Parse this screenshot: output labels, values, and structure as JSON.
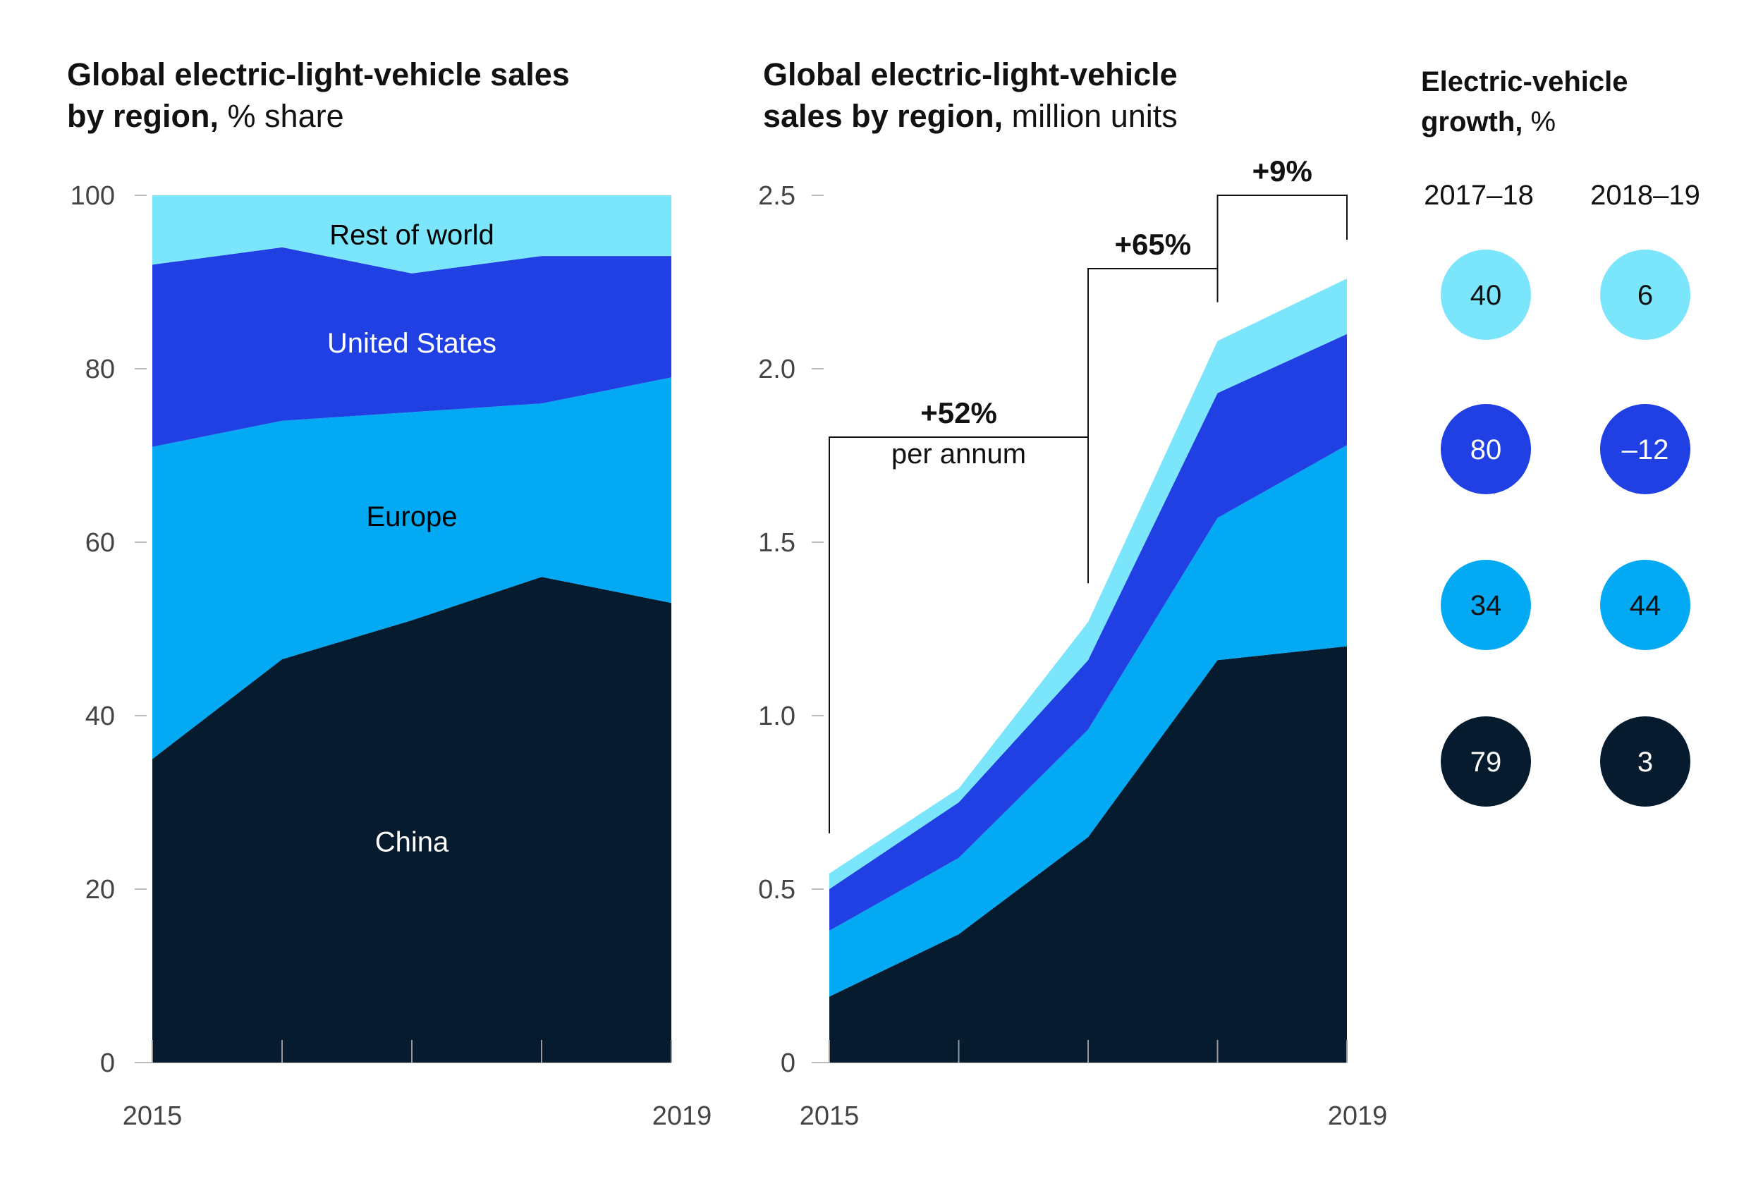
{
  "chart_data": [
    {
      "type": "area",
      "stacked": true,
      "title_bold": "Global electric-light-vehicle sales by region,",
      "title_unit": "% share",
      "title_line1": "Global electric-light-vehicle sales",
      "title_line2_bold": "by region,",
      "x": [
        2015,
        2016,
        2017,
        2018,
        2019
      ],
      "x_tick_labels": [
        "2015",
        "2019"
      ],
      "ylim": [
        0,
        100
      ],
      "y_ticks": [
        "0",
        "20",
        "40",
        "60",
        "80",
        "100"
      ],
      "series": [
        {
          "name": "China",
          "values": [
            35,
            46.5,
            51,
            56,
            53
          ],
          "color": "#061c2e",
          "label_color": "#ffffff"
        },
        {
          "name": "Europe",
          "values": [
            36,
            27.5,
            24,
            20,
            26
          ],
          "color": "#03a9f2",
          "label_color": "#000000"
        },
        {
          "name": "United States",
          "values": [
            21,
            20,
            16,
            17,
            14
          ],
          "color": "#2040e3",
          "label_color": "#ffffff"
        },
        {
          "name": "Rest of world",
          "values": [
            8,
            6,
            9,
            7,
            7
          ],
          "color": "#7be5fb",
          "label_color": "#000000"
        }
      ]
    },
    {
      "type": "area",
      "stacked": true,
      "title_line1": "Global electric-light-vehicle",
      "title_line2_bold": "sales by region,",
      "title_unit": "million units",
      "x": [
        2015,
        2016,
        2017,
        2018,
        2019
      ],
      "x_tick_labels": [
        "2015",
        "2019"
      ],
      "ylim": [
        0,
        2.5
      ],
      "y_ticks": [
        "0",
        "0.5",
        "1.0",
        "1.5",
        "2.0",
        "2.5"
      ],
      "series": [
        {
          "name": "China",
          "values": [
            0.19,
            0.37,
            0.65,
            1.16,
            1.2
          ],
          "color": "#061c2e"
        },
        {
          "name": "Europe",
          "values": [
            0.19,
            0.22,
            0.31,
            0.41,
            0.58
          ],
          "color": "#03a9f2"
        },
        {
          "name": "United States",
          "values": [
            0.12,
            0.16,
            0.2,
            0.36,
            0.32
          ],
          "color": "#2040e3"
        },
        {
          "name": "Rest of world",
          "values": [
            0.045,
            0.04,
            0.11,
            0.15,
            0.16
          ],
          "color": "#7be5fb"
        }
      ],
      "annotations": [
        {
          "label": "+52%",
          "sub": "per annum",
          "from": 2015,
          "to": 2017
        },
        {
          "label": "+65%",
          "sub": "",
          "from": 2017,
          "to": 2018
        },
        {
          "label": "+9%",
          "sub": "",
          "from": 2018,
          "to": 2019
        }
      ]
    }
  ],
  "growth": {
    "title_line1": "Electric-vehicle",
    "title_line2_bold": "growth,",
    "title_unit": "%",
    "columns": [
      "2017–18",
      "2018–19"
    ],
    "rows": [
      {
        "region": "Rest of world",
        "color": "#7be5fb",
        "text_color": "#111111",
        "values": [
          "40",
          "6"
        ]
      },
      {
        "region": "United States",
        "color": "#2040e3",
        "text_color": "#ffffff",
        "values": [
          "80",
          "–12"
        ]
      },
      {
        "region": "Europe",
        "color": "#03a9f2",
        "text_color": "#111111",
        "values": [
          "34",
          "44"
        ]
      },
      {
        "region": "China",
        "color": "#061c2e",
        "text_color": "#ffffff",
        "values": [
          "79",
          "3"
        ]
      }
    ]
  }
}
